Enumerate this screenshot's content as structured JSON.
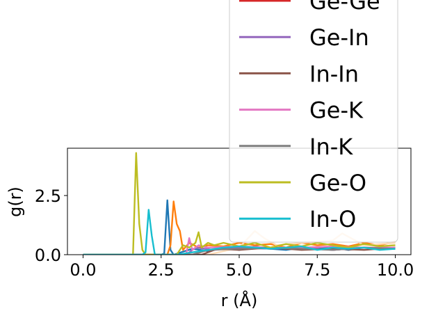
{
  "chart_data": {
    "type": "line",
    "title": "",
    "xlabel": "r (Å)",
    "ylabel": "g(r)",
    "xlim": [
      -0.5,
      10.5
    ],
    "ylim": [
      0.0,
      4.5
    ],
    "xticks": [
      0.0,
      2.5,
      5.0,
      7.5,
      10.0
    ],
    "xtick_labels": [
      "0.0",
      "2.5",
      "5.0",
      "7.5",
      "10.0"
    ],
    "yticks": [
      0.0,
      2.5
    ],
    "ytick_labels": [
      "0.0",
      "2.5"
    ],
    "grid": false,
    "legend_placement": "upper-right",
    "series": [
      {
        "name": "",
        "color": "#1f77b4",
        "x": [
          0,
          2.5,
          2.6,
          2.7,
          2.8,
          2.9,
          3.5,
          4.0,
          4.5,
          5.0,
          5.5,
          6.0,
          6.5,
          7.0,
          7.5,
          8.0,
          8.5,
          9.0,
          9.5,
          10.0
        ],
        "y": [
          0,
          0,
          0.05,
          2.3,
          0.2,
          0,
          0.25,
          0.15,
          0.3,
          0.2,
          0.35,
          0.25,
          0.2,
          0.3,
          0.25,
          0.3,
          0.2,
          0.3,
          0.25,
          0.3
        ]
      },
      {
        "name": "",
        "color": "#ff7f0e",
        "x": [
          0,
          2.7,
          2.8,
          2.9,
          3.0,
          3.1,
          3.2,
          3.4,
          3.7,
          4.0,
          4.5,
          5.0,
          5.5,
          6.0,
          6.5,
          7.0,
          7.5,
          8.0,
          8.5,
          9.0,
          9.5,
          10.0
        ],
        "y": [
          0,
          0,
          0.4,
          2.25,
          1.3,
          1.0,
          0.2,
          0.5,
          0.3,
          0.4,
          0.35,
          0.5,
          0.4,
          0.45,
          0.3,
          0.5,
          0.4,
          0.45,
          0.35,
          0.5,
          0.4,
          0.55
        ]
      },
      {
        "name": "",
        "color": "#ffdcb8",
        "x": [
          0,
          4.0,
          5.0,
          5.5,
          5.8,
          6.2,
          7.0,
          8.0,
          8.3,
          9.0,
          10.0
        ],
        "y": [
          0,
          0,
          0.3,
          1.0,
          0.7,
          0.4,
          0.5,
          0.6,
          0.9,
          0.4,
          0.5
        ]
      },
      {
        "name": "Ge-Ge",
        "color": "#d62728",
        "x": [
          0,
          3.5,
          4.0,
          5.0,
          6.0,
          7.0,
          8.0,
          9.0,
          10.0
        ],
        "y": [
          0,
          0,
          0.2,
          0.3,
          0.25,
          0.3,
          0.2,
          0.3,
          0.25
        ]
      },
      {
        "name": "Ge-In",
        "color": "#9467bd",
        "x": [
          0,
          3.3,
          3.6,
          4.2,
          5.0,
          6.0,
          7.0,
          8.0,
          9.0,
          10.0
        ],
        "y": [
          0,
          0,
          0.3,
          0.2,
          0.3,
          0.25,
          0.3,
          0.2,
          0.3,
          0.25
        ]
      },
      {
        "name": "In-In",
        "color": "#8c564b",
        "x": [
          0,
          3.8,
          4.3,
          5.0,
          6.0,
          7.0,
          8.0,
          9.0,
          10.0
        ],
        "y": [
          0,
          0,
          0.25,
          0.2,
          0.3,
          0.2,
          0.25,
          0.2,
          0.3
        ]
      },
      {
        "name": "Ge-K",
        "color": "#e377c2",
        "x": [
          0,
          3.3,
          3.4,
          3.5,
          3.7,
          4.0,
          5.0,
          6.0,
          7.0,
          8.0,
          9.0,
          10.0
        ],
        "y": [
          0,
          0,
          0.7,
          0.2,
          0.4,
          0.3,
          0.35,
          0.3,
          0.3,
          0.35,
          0.3,
          0.3
        ]
      },
      {
        "name": "In-K",
        "color": "#7f7f7f",
        "x": [
          0,
          3.5,
          4.0,
          5.0,
          6.0,
          7.0,
          8.0,
          9.0,
          10.0
        ],
        "y": [
          0,
          0,
          0.2,
          0.25,
          0.3,
          0.25,
          0.2,
          0.3,
          0.25
        ]
      },
      {
        "name": "Ge-O",
        "color": "#bcbd22",
        "x": [
          0,
          1.6,
          1.7,
          1.8,
          1.9,
          2.0,
          3.0,
          3.2,
          3.4,
          3.6,
          3.7,
          3.8,
          4.0,
          4.2,
          4.5,
          5.0,
          5.5,
          6.0,
          6.5,
          7.0,
          7.5,
          8.0,
          8.5,
          9.0,
          9.5,
          10.0
        ],
        "y": [
          0,
          0,
          4.3,
          1.3,
          0.2,
          0,
          0,
          0.4,
          0.3,
          0.5,
          0.95,
          0.3,
          0.5,
          0.4,
          0.5,
          0.35,
          0.5,
          0.3,
          0.45,
          0.35,
          0.5,
          0.4,
          0.3,
          0.45,
          0.35,
          0.4
        ]
      },
      {
        "name": "In-O",
        "color": "#17becf",
        "x": [
          0,
          1.9,
          2.0,
          2.1,
          2.2,
          2.3,
          3.0,
          4.0,
          4.5,
          5.0,
          5.5,
          6.0,
          6.5,
          7.0,
          7.5,
          8.0,
          8.5,
          9.0,
          9.5,
          10.0
        ],
        "y": [
          0,
          0,
          0.1,
          1.9,
          0.8,
          0,
          0,
          0.2,
          0.3,
          0.35,
          0.3,
          0.25,
          0.3,
          0.35,
          0.2,
          0.3,
          0.25,
          0.3,
          0.2,
          0.25
        ]
      }
    ]
  }
}
